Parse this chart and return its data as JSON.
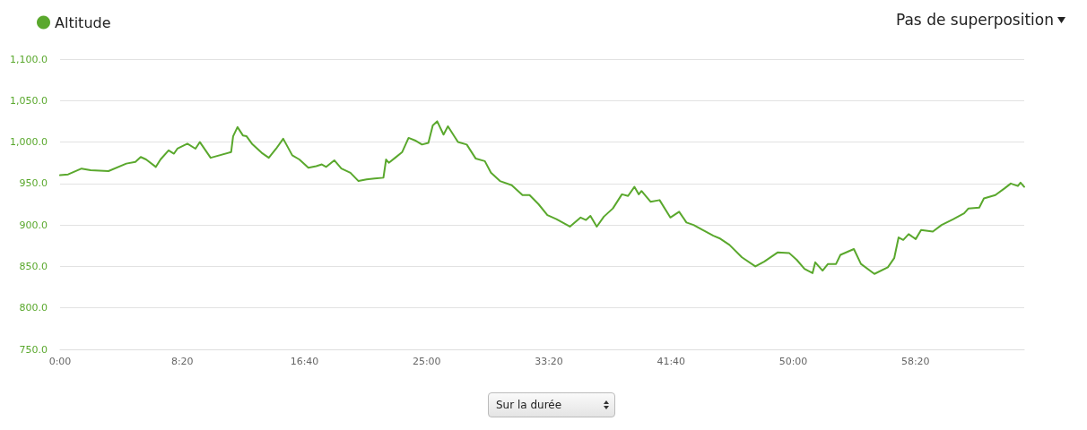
{
  "chart_data": {
    "type": "line",
    "legend": "top left",
    "grid": "y",
    "marker": "none",
    "line_style": "solid",
    "annotations": [
      "Pas de superposition",
      "Sur la durée"
    ],
    "xlim": [
      0,
      3945
    ],
    "xticks": [
      {
        "value": 0,
        "label": "0:00"
      },
      {
        "value": 500,
        "label": "8:20"
      },
      {
        "value": 1000,
        "label": "16:40"
      },
      {
        "value": 1500,
        "label": "25:00"
      },
      {
        "value": 2000,
        "label": "33:20"
      },
      {
        "value": 2500,
        "label": "41:40"
      },
      {
        "value": 3000,
        "label": "50:00"
      },
      {
        "value": 3500,
        "label": "58:20"
      }
    ],
    "ylim": [
      750,
      1100
    ],
    "yticks": [
      {
        "value": 750,
        "label": "750.0"
      },
      {
        "value": 800,
        "label": "800.0"
      },
      {
        "value": 850,
        "label": "850.0"
      },
      {
        "value": 900,
        "label": "900.0"
      },
      {
        "value": 950,
        "label": "950.0"
      },
      {
        "value": 1000,
        "label": "1,000.0"
      },
      {
        "value": 1050,
        "label": "1,050.0"
      },
      {
        "value": 1100,
        "label": "1,100.0"
      }
    ],
    "series": [
      {
        "name": "Altitude",
        "color": "#5aa82d",
        "x": [
          0,
          33,
          88,
          125,
          198,
          271,
          308,
          330,
          352,
          392,
          411,
          444,
          466,
          480,
          521,
          554,
          572,
          616,
          700,
          708,
          726,
          748,
          763,
          785,
          825,
          854,
          884,
          913,
          950,
          979,
          1016,
          1048,
          1071,
          1089,
          1122,
          1151,
          1188,
          1221,
          1254,
          1287,
          1323,
          1334,
          1345,
          1371,
          1400,
          1426,
          1452,
          1481,
          1507,
          1525,
          1543,
          1569,
          1587,
          1628,
          1664,
          1701,
          1738,
          1763,
          1800,
          1848,
          1892,
          1921,
          1958,
          1994,
          2031,
          2086,
          2130,
          2152,
          2170,
          2196,
          2225,
          2262,
          2299,
          2324,
          2350,
          2368,
          2379,
          2416,
          2453,
          2497,
          2533,
          2563,
          2592,
          2629,
          2673,
          2698,
          2739,
          2790,
          2845,
          2882,
          2937,
          2984,
          3014,
          3046,
          3079,
          3090,
          3120,
          3142,
          3175,
          3193,
          3248,
          3277,
          3332,
          3387,
          3413,
          3431,
          3450,
          3472,
          3501,
          3523,
          3571,
          3607,
          3655,
          3699,
          3717,
          3761,
          3780,
          3827,
          3864,
          3890,
          3919,
          3930,
          3945
        ],
        "values": [
          960,
          961,
          968,
          966,
          965,
          974,
          976,
          982,
          979,
          970,
          979,
          990,
          986,
          992,
          998,
          992,
          1000,
          981,
          988,
          1007,
          1018,
          1008,
          1007,
          998,
          987,
          981,
          992,
          1004,
          984,
          979,
          969,
          971,
          973,
          970,
          978,
          968,
          963,
          953,
          955,
          956,
          957,
          979,
          975,
          981,
          988,
          1005,
          1002,
          997,
          999,
          1020,
          1025,
          1009,
          1019,
          1000,
          997,
          980,
          977,
          963,
          953,
          948,
          936,
          936,
          925,
          912,
          907,
          898,
          909,
          906,
          911,
          898,
          910,
          920,
          937,
          935,
          946,
          937,
          941,
          928,
          930,
          909,
          916,
          903,
          900,
          894,
          887,
          884,
          876,
          861,
          850,
          856,
          867,
          866,
          858,
          847,
          842,
          855,
          845,
          853,
          853,
          864,
          871,
          853,
          841,
          849,
          860,
          885,
          882,
          889,
          883,
          894,
          892,
          900,
          907,
          914,
          920,
          921,
          932,
          936,
          944,
          950,
          947,
          951,
          946
        ]
      }
    ]
  }
}
